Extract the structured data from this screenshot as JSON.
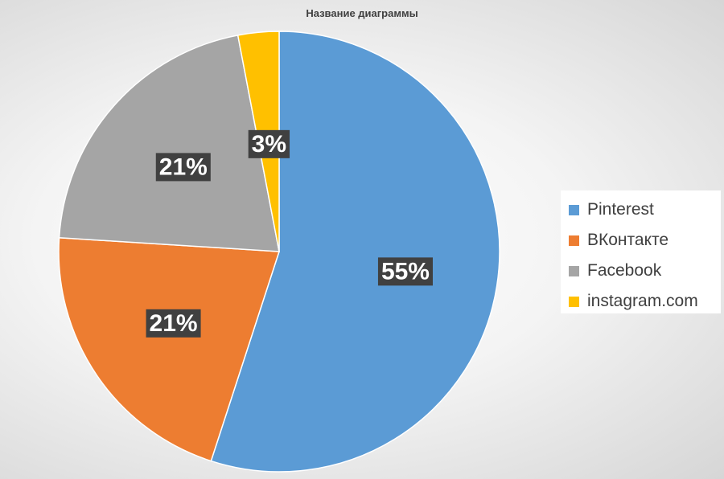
{
  "chart_data": {
    "type": "pie",
    "title": "Название диаграммы",
    "categories": [
      "Pinterest",
      "ВКонтакте",
      "Facebook",
      "instagram.com"
    ],
    "values": [
      55,
      21,
      21,
      3
    ],
    "labels": [
      "55%",
      "21%",
      "21%",
      "3%"
    ],
    "colors": [
      "#5B9BD5",
      "#ED7D31",
      "#A5A5A5",
      "#FFC000"
    ],
    "start_angle": "12 o'clock",
    "direction": "clockwise",
    "data_label_background": "#404040",
    "data_label_color": "#ffffff",
    "legend_placement": "right"
  }
}
